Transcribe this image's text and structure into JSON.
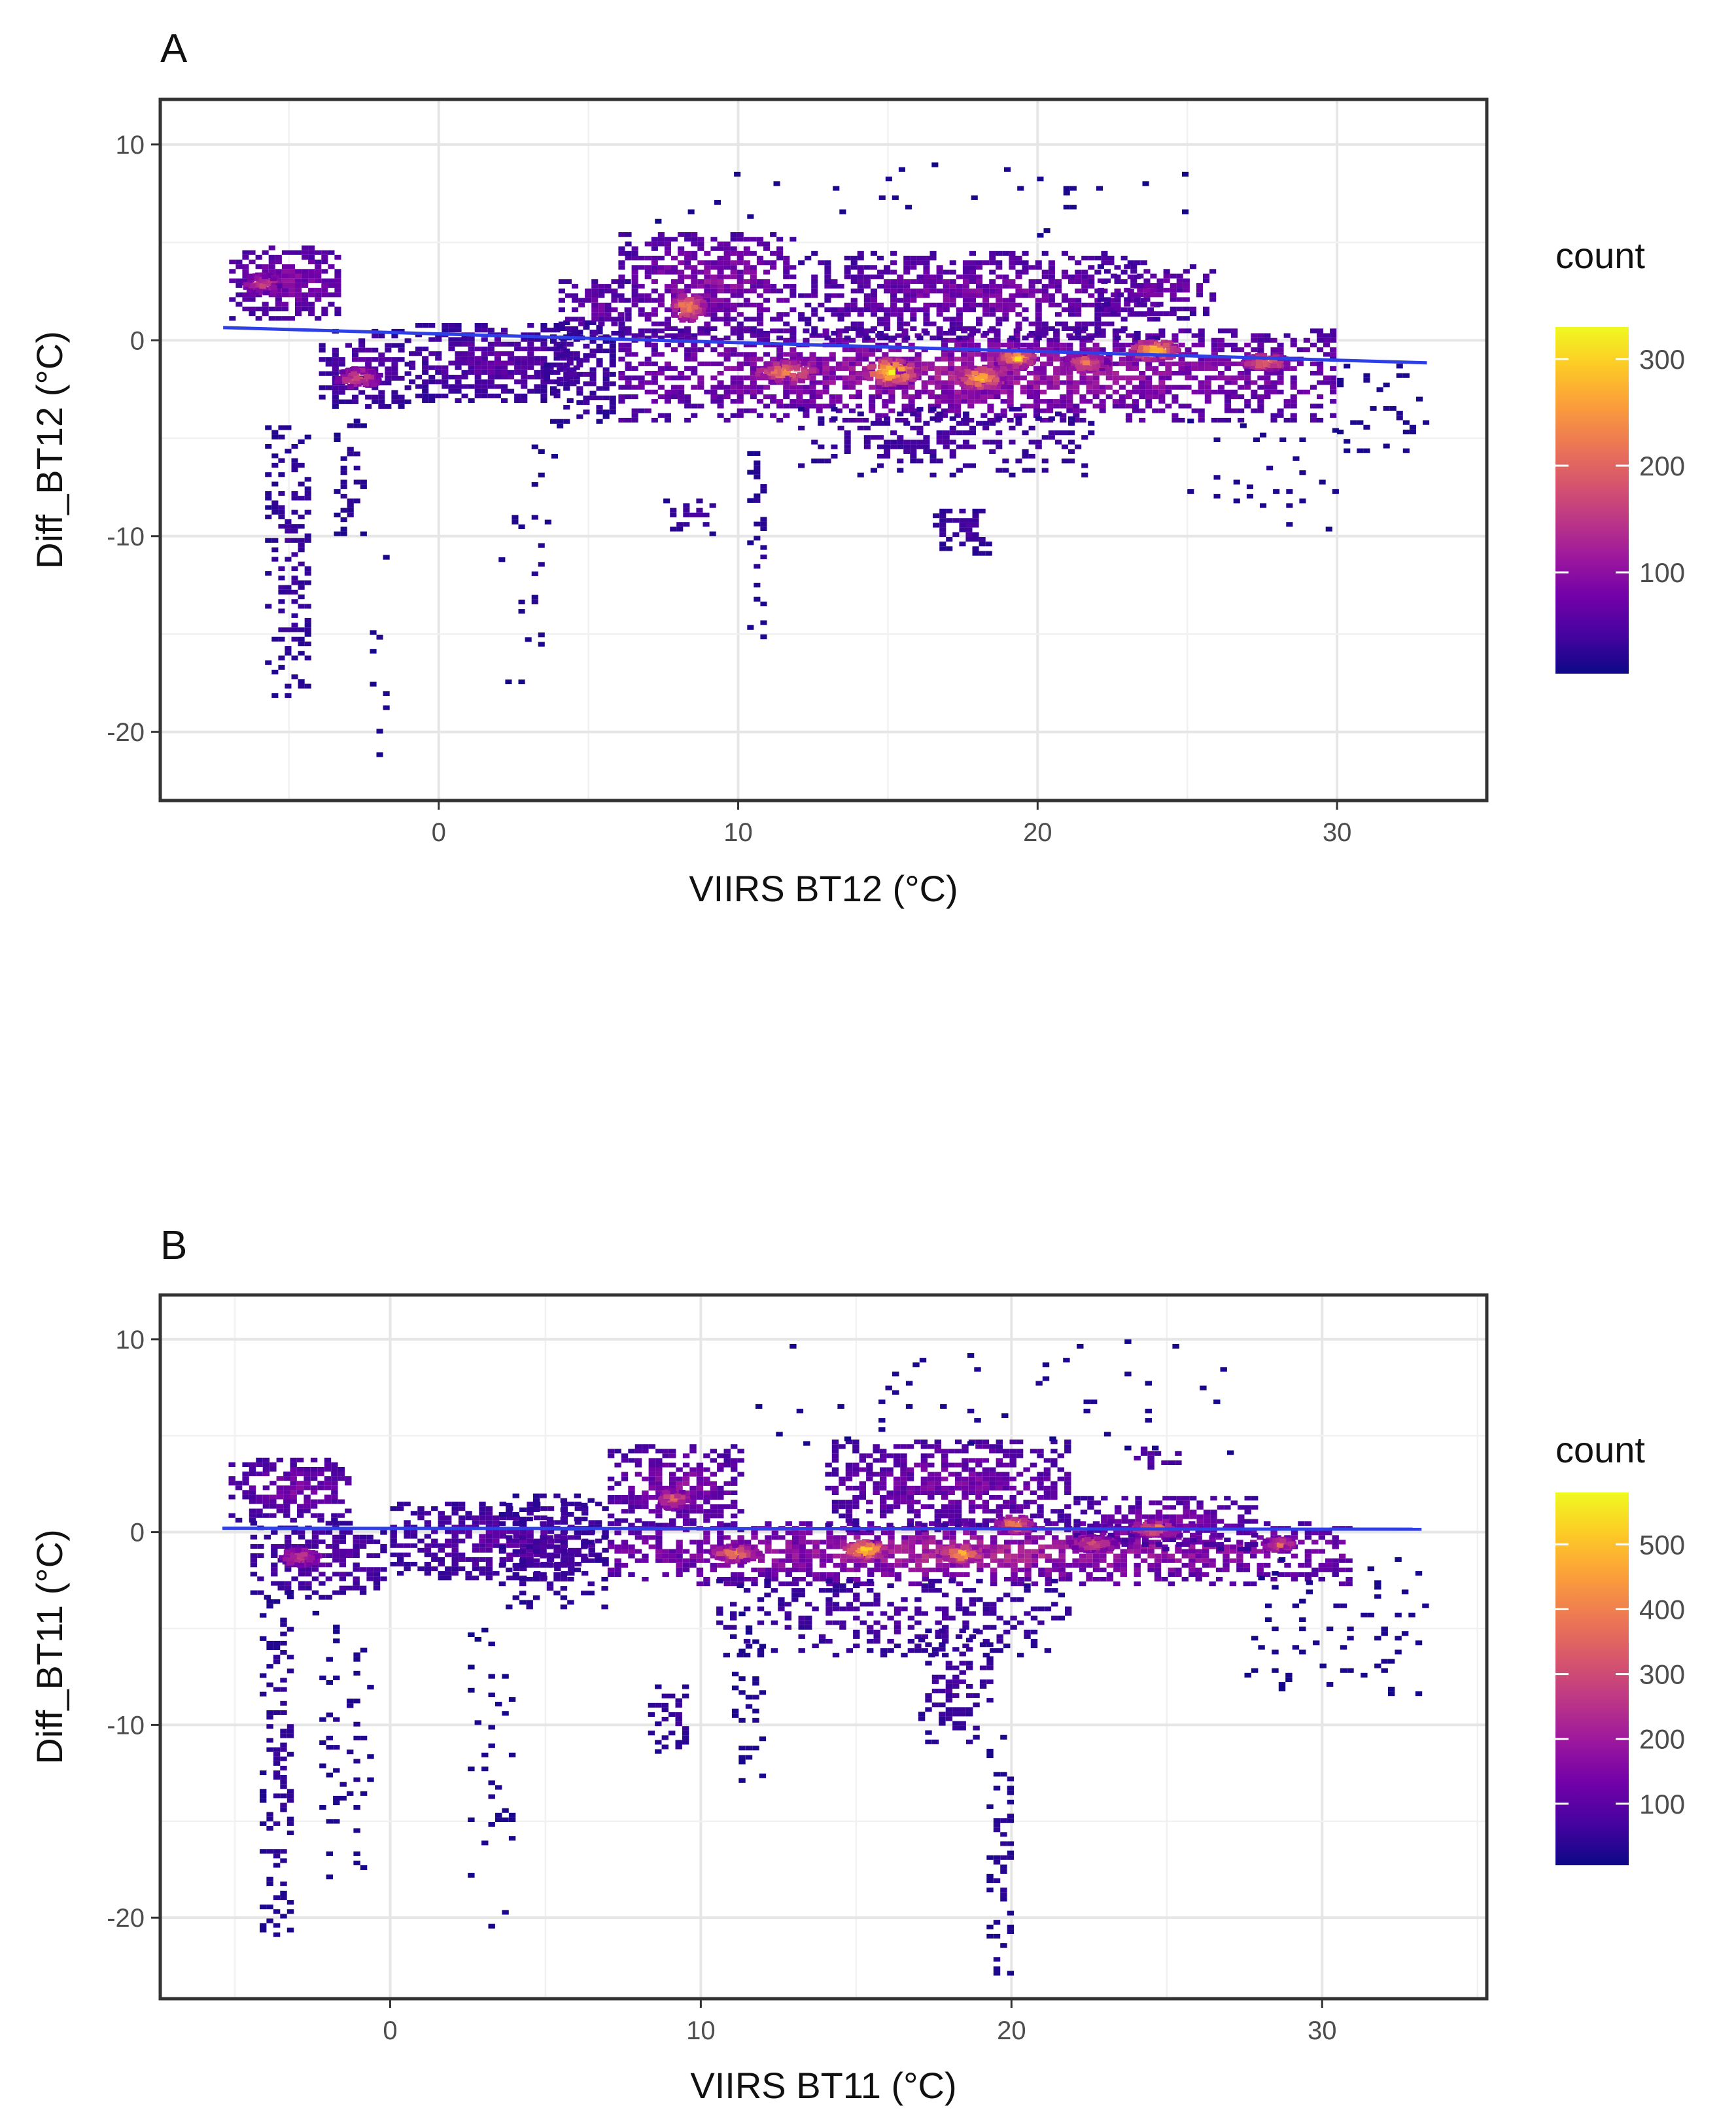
{
  "colors": {
    "trend_line": "#2f3fe6",
    "plasma": [
      "#0d0887",
      "#46039f",
      "#7201a8",
      "#9c179e",
      "#bd3786",
      "#d8576b",
      "#ed7953",
      "#fb9f3a",
      "#fdca26",
      "#f0f921"
    ]
  },
  "chart_data": [
    {
      "type": "heatmap",
      "subtype": "2d-bin-count-with-linear-fit",
      "panel_label": "A",
      "xlabel": "VIIRS BT12 (°C)",
      "ylabel": "Diff_BT12 (°C)",
      "xlim": [
        -9.3,
        35
      ],
      "ylim": [
        -23.5,
        12.3
      ],
      "x_ticks": [
        0,
        10,
        20,
        30
      ],
      "x_tick_labels": [
        "0",
        "10",
        "20",
        "30"
      ],
      "y_ticks": [
        10,
        0,
        -10,
        -20
      ],
      "y_tick_labels": [
        "10",
        "0",
        "-10",
        "-20"
      ],
      "legend": {
        "title": "count",
        "min": 5,
        "max": 330,
        "ticks": [
          300,
          200,
          100
        ],
        "tick_labels": [
          "300",
          "200",
          "100"
        ]
      },
      "trend_line": {
        "x": [
          -7.2,
          33
        ],
        "y": [
          0.65,
          -1.15
        ]
      },
      "clusters": [
        {
          "x": [
            -7.0,
            -3.2
          ],
          "y": [
            1.0,
            4.8
          ],
          "density": 0.32,
          "fill": 0.95
        },
        {
          "x": [
            -4.0,
            -1.0
          ],
          "y": [
            -3.5,
            0.5
          ],
          "density": 0.2,
          "fill": 0.85
        },
        {
          "x": [
            -1.0,
            4.8
          ],
          "y": [
            -3.2,
            0.8
          ],
          "density": 0.22,
          "fill": 0.9
        },
        {
          "x": [
            3.5,
            6.0
          ],
          "y": [
            -4.5,
            1.0
          ],
          "density": 0.15,
          "fill": 0.55
        },
        {
          "x": [
            4.0,
            6.5
          ],
          "y": [
            0.0,
            3.2
          ],
          "density": 0.25,
          "fill": 0.8
        },
        {
          "x": [
            6.0,
            12.0
          ],
          "y": [
            0.0,
            5.5
          ],
          "density": 0.35,
          "fill": 0.85
        },
        {
          "x": [
            6.0,
            30.0
          ],
          "y": [
            -4.2,
            0.5
          ],
          "density": 0.42,
          "fill": 0.92
        },
        {
          "x": [
            12.0,
            24.0
          ],
          "y": [
            0.0,
            4.5
          ],
          "density": 0.3,
          "fill": 0.82
        },
        {
          "x": [
            22.0,
            26.0
          ],
          "y": [
            1.0,
            3.8
          ],
          "density": 0.28,
          "fill": 0.7
        },
        {
          "x": [
            12.0,
            22.0
          ],
          "y": [
            -7.0,
            -3.5
          ],
          "density": 0.15,
          "fill": 0.4
        },
        {
          "x": [
            7.5,
            9.2
          ],
          "y": [
            -10.0,
            -8.0
          ],
          "density": 0.15,
          "fill": 0.5
        },
        {
          "x": [
            16.5,
            18.5
          ],
          "y": [
            -11.0,
            -8.5
          ],
          "density": 0.15,
          "fill": 0.55
        },
        {
          "x": [
            -5.8,
            -4.2
          ],
          "y": [
            -18.5,
            -4.0
          ],
          "density": 0.12,
          "fill": 0.5
        },
        {
          "x": [
            -3.5,
            -2.5
          ],
          "y": [
            -10.0,
            -4.0
          ],
          "density": 0.1,
          "fill": 0.35
        },
        {
          "x": [
            -2.3,
            -1.6
          ],
          "y": [
            -22.0,
            -10.0
          ],
          "density": 0.06,
          "fill": 0.12
        },
        {
          "x": [
            2.0,
            4.0
          ],
          "y": [
            -19.0,
            -5.0
          ],
          "density": 0.06,
          "fill": 0.1
        },
        {
          "x": [
            10.3,
            11.0
          ],
          "y": [
            -15.5,
            -5.0
          ],
          "density": 0.08,
          "fill": 0.3
        },
        {
          "x": [
            25.0,
            30.0
          ],
          "y": [
            -10.0,
            -4.0
          ],
          "density": 0.06,
          "fill": 0.1
        },
        {
          "x": [
            30.0,
            33.0
          ],
          "y": [
            -6.0,
            -1.0
          ],
          "density": 0.06,
          "fill": 0.15
        },
        {
          "x": [
            7.0,
            25.0
          ],
          "y": [
            5.0,
            9.0
          ],
          "density": 0.05,
          "fill": 0.04
        }
      ],
      "hotspots": [
        {
          "x": 15.0,
          "y": -1.5,
          "w": 1.8,
          "h": 1.4,
          "v": 0.92
        },
        {
          "x": 18.0,
          "y": -1.8,
          "w": 1.5,
          "h": 1.2,
          "v": 0.82
        },
        {
          "x": 19.2,
          "y": -0.8,
          "w": 1.2,
          "h": 1.0,
          "v": 0.85
        },
        {
          "x": 23.8,
          "y": -0.4,
          "w": 1.6,
          "h": 1.0,
          "v": 0.9
        },
        {
          "x": 8.2,
          "y": 1.8,
          "w": 1.2,
          "h": 1.4,
          "v": 0.7
        },
        {
          "x": 11.5,
          "y": -1.5,
          "w": 2.0,
          "h": 1.2,
          "v": 0.7
        },
        {
          "x": 27.5,
          "y": -1.0,
          "w": 1.5,
          "h": 0.8,
          "v": 0.65
        },
        {
          "x": -2.8,
          "y": -1.8,
          "w": 1.5,
          "h": 1.0,
          "v": 0.5
        },
        {
          "x": -6.0,
          "y": 3.0,
          "w": 1.2,
          "h": 1.0,
          "v": 0.45
        },
        {
          "x": 21.5,
          "y": -1.0,
          "w": 1.5,
          "h": 1.0,
          "v": 0.6
        }
      ]
    },
    {
      "type": "heatmap",
      "subtype": "2d-bin-count-with-linear-fit",
      "panel_label": "B",
      "xlabel": "VIIRS BT11 (°C)",
      "ylabel": "Diff_BT11 (°C)",
      "xlim": [
        -7.4,
        35.3
      ],
      "ylim": [
        -24.2,
        12.3
      ],
      "x_ticks": [
        0,
        10,
        20,
        30
      ],
      "x_tick_labels": [
        "0",
        "10",
        "20",
        "30"
      ],
      "y_ticks": [
        10,
        0,
        -10,
        -20
      ],
      "y_tick_labels": [
        "10",
        "0",
        "-10",
        "-20"
      ],
      "legend": {
        "title": "count",
        "min": 5,
        "max": 580,
        "ticks": [
          500,
          400,
          300,
          200,
          100
        ],
        "tick_labels": [
          "500",
          "400",
          "300",
          "200",
          "100"
        ]
      },
      "trend_line": {
        "x": [
          -5.4,
          33.2
        ],
        "y": [
          0.2,
          0.15
        ]
      },
      "clusters": [
        {
          "x": [
            -5.2,
            -1.2
          ],
          "y": [
            0.5,
            3.8
          ],
          "density": 0.3,
          "fill": 0.95
        },
        {
          "x": [
            -4.5,
            0.0
          ],
          "y": [
            -3.5,
            0.5
          ],
          "density": 0.2,
          "fill": 0.8
        },
        {
          "x": [
            0.0,
            7.0
          ],
          "y": [
            -2.5,
            1.5
          ],
          "density": 0.22,
          "fill": 0.88
        },
        {
          "x": [
            3.5,
            7.0
          ],
          "y": [
            -4.0,
            2.0
          ],
          "density": 0.15,
          "fill": 0.5
        },
        {
          "x": [
            7.0,
            11.5
          ],
          "y": [
            0.0,
            4.5
          ],
          "density": 0.32,
          "fill": 0.85
        },
        {
          "x": [
            7.0,
            31.0
          ],
          "y": [
            -2.8,
            0.5
          ],
          "density": 0.45,
          "fill": 0.92
        },
        {
          "x": [
            14.0,
            22.0
          ],
          "y": [
            0.0,
            4.8
          ],
          "density": 0.3,
          "fill": 0.82
        },
        {
          "x": [
            22.0,
            28.0
          ],
          "y": [
            -1.0,
            1.8
          ],
          "density": 0.3,
          "fill": 0.8
        },
        {
          "x": [
            10.5,
            22.0
          ],
          "y": [
            -6.5,
            -2.5
          ],
          "density": 0.16,
          "fill": 0.45
        },
        {
          "x": [
            8.3,
            9.7
          ],
          "y": [
            -11.5,
            -8.0
          ],
          "density": 0.12,
          "fill": 0.5
        },
        {
          "x": [
            17.0,
            19.5
          ],
          "y": [
            -11.0,
            -5.0
          ],
          "density": 0.15,
          "fill": 0.5
        },
        {
          "x": [
            23.5,
            25.5
          ],
          "y": [
            3.0,
            4.5
          ],
          "density": 0.2,
          "fill": 0.6
        },
        {
          "x": [
            -4.2,
            -3.0
          ],
          "y": [
            -21.0,
            -3.0
          ],
          "density": 0.1,
          "fill": 0.45
        },
        {
          "x": [
            -2.5,
            -0.5
          ],
          "y": [
            -18.0,
            -4.0
          ],
          "density": 0.06,
          "fill": 0.15
        },
        {
          "x": [
            2.5,
            4.0
          ],
          "y": [
            -22.0,
            -5.0
          ],
          "density": 0.05,
          "fill": 0.12
        },
        {
          "x": [
            11.0,
            12.0
          ],
          "y": [
            -13.0,
            -4.0
          ],
          "density": 0.06,
          "fill": 0.25
        },
        {
          "x": [
            19.2,
            20.0
          ],
          "y": [
            -23.0,
            -10.0
          ],
          "density": 0.08,
          "fill": 0.35
        },
        {
          "x": [
            27.5,
            33.5
          ],
          "y": [
            -8.5,
            -1.0
          ],
          "density": 0.05,
          "fill": 0.12
        },
        {
          "x": [
            10.0,
            28.0
          ],
          "y": [
            4.0,
            10.0
          ],
          "density": 0.05,
          "fill": 0.04
        }
      ],
      "hotspots": [
        {
          "x": 15.2,
          "y": -0.8,
          "w": 1.3,
          "h": 0.9,
          "v": 0.95
        },
        {
          "x": 18.3,
          "y": -1.0,
          "w": 1.3,
          "h": 0.9,
          "v": 0.85
        },
        {
          "x": 11.0,
          "y": -1.0,
          "w": 1.6,
          "h": 0.9,
          "v": 0.65
        },
        {
          "x": 20.0,
          "y": 0.5,
          "w": 1.2,
          "h": 0.9,
          "v": 0.7
        },
        {
          "x": 24.5,
          "y": 0.3,
          "w": 1.5,
          "h": 0.8,
          "v": 0.65
        },
        {
          "x": 9.0,
          "y": 1.8,
          "w": 1.0,
          "h": 1.0,
          "v": 0.55
        },
        {
          "x": 28.5,
          "y": -0.5,
          "w": 1.0,
          "h": 0.7,
          "v": 0.55
        },
        {
          "x": 22.5,
          "y": -0.5,
          "w": 1.5,
          "h": 0.8,
          "v": 0.5
        },
        {
          "x": -3.0,
          "y": -1.2,
          "w": 1.2,
          "h": 0.9,
          "v": 0.45
        }
      ]
    }
  ]
}
